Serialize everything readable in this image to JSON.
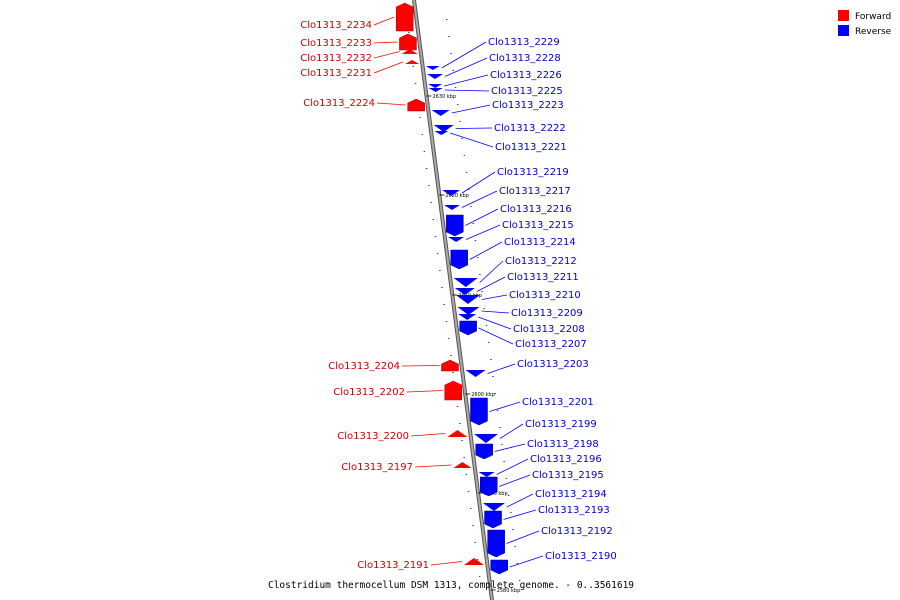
{
  "title": "Clostridium thermocellum DSM 1313, complete genome. - 0..3561619",
  "legend": [
    {
      "label": "Forward",
      "color": "#ff0000"
    },
    {
      "label": "Reverse",
      "color": "#0000ff"
    }
  ],
  "ticks": [
    "2630 kbp",
    "2620 kbp",
    "2610 kbp",
    "2600 kbp",
    "2590 kbp",
    "2580 kbp"
  ],
  "genes_forward": [
    "Clo1313_2234",
    "Clo1313_2233",
    "Clo1313_2232",
    "Clo1313_2231",
    "Clo1313_2224",
    "Clo1313_2204",
    "Clo1313_2202",
    "Clo1313_2200",
    "Clo1313_2197",
    "Clo1313_2191"
  ],
  "genes_reverse": [
    "Clo1313_2229",
    "Clo1313_2228",
    "Clo1313_2226",
    "Clo1313_2225",
    "Clo1313_2223",
    "Clo1313_2222",
    "Clo1313_2221",
    "Clo1313_2219",
    "Clo1313_2217",
    "Clo1313_2216",
    "Clo1313_2215",
    "Clo1313_2214",
    "Clo1313_2212",
    "Clo1313_2211",
    "Clo1313_2210",
    "Clo1313_2209",
    "Clo1313_2208",
    "Clo1313_2207",
    "Clo1313_2203",
    "Clo1313_2201",
    "Clo1313_2199",
    "Clo1313_2198",
    "Clo1313_2196",
    "Clo1313_2195",
    "Clo1313_2194",
    "Clo1313_2193",
    "Clo1313_2192",
    "Clo1313_2190"
  ],
  "colors": {
    "forward": "#ff0000",
    "reverse": "#0000ff",
    "backbone": "#888888"
  }
}
